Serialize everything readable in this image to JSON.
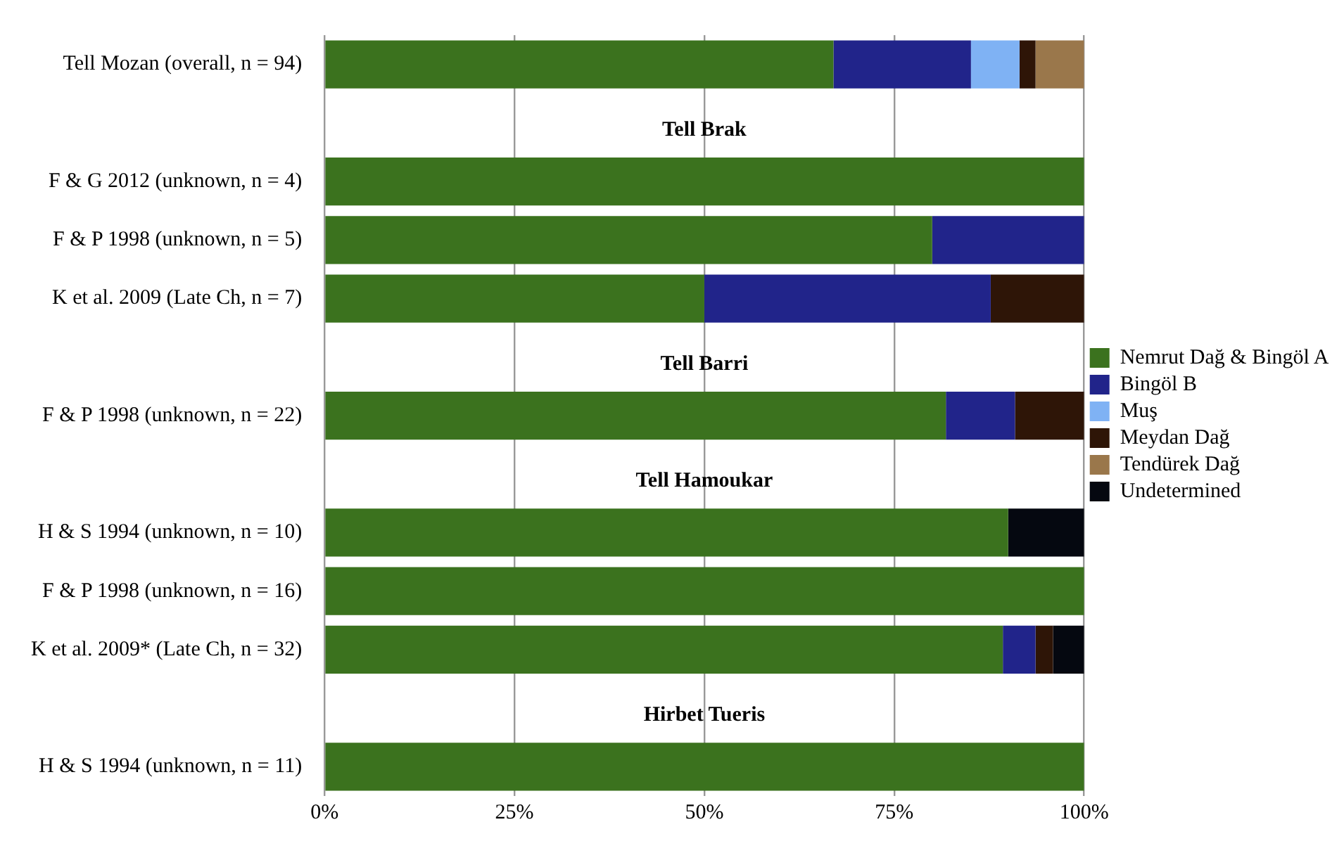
{
  "chart_data": {
    "type": "bar",
    "orientation": "horizontal",
    "stacked": true,
    "categories": [
      "Tell Mozan (overall, n = 94)",
      null,
      "F & G 2012 (unknown, n = 4)",
      "F & P 1998 (unknown, n = 5)",
      "K et al. 2009 (Late Ch, n = 7)",
      null,
      "F & P 1998 (unknown, n = 22)",
      null,
      "H & S 1994 (unknown, n = 10)",
      "F & P 1998 (unknown, n = 16)",
      "K et al. 2009* (Late Ch, n = 32)",
      null,
      "H & S 1994 (unknown, n = 11)"
    ],
    "annotations": [
      "Tell Brak",
      "Tell Barri",
      "Tell Hamoukar",
      "Hirbet Tueris"
    ],
    "series": [
      {
        "name": "Nemrut Dağ & Bingöl A",
        "color": "#3b721e",
        "values": [
          67,
          null,
          100,
          80,
          50,
          null,
          81.8,
          null,
          90,
          100,
          89.3,
          null,
          100
        ]
      },
      {
        "name": "Bingöl B",
        "color": "#21248a",
        "values": [
          18.1,
          null,
          0,
          20,
          37.7,
          null,
          9.1,
          null,
          0,
          0,
          4.3,
          null,
          0
        ]
      },
      {
        "name": "Muş",
        "color": "#7fb2f4",
        "values": [
          6.4,
          null,
          0,
          0,
          0,
          null,
          0,
          null,
          0,
          0,
          0,
          null,
          0
        ]
      },
      {
        "name": "Meydan Dağ",
        "color": "#2e1507",
        "values": [
          2.1,
          null,
          0,
          0,
          12.3,
          null,
          9.1,
          null,
          0,
          0,
          2.3,
          null,
          0
        ]
      },
      {
        "name": "Tendürek Dağ",
        "color": "#9a774b",
        "values": [
          6.4,
          null,
          0,
          0,
          0,
          null,
          0,
          null,
          0,
          0,
          0,
          null,
          0
        ]
      },
      {
        "name": "Undetermined",
        "color": "#050810",
        "values": [
          0,
          null,
          0,
          0,
          0,
          null,
          0,
          null,
          10,
          0,
          4.1,
          null,
          0
        ]
      }
    ],
    "xlim": [
      0,
      100
    ],
    "xticks": [
      {
        "value": 0,
        "label": "0%"
      },
      {
        "value": 25,
        "label": "25%"
      },
      {
        "value": 50,
        "label": "50%"
      },
      {
        "value": 75,
        "label": "75%"
      },
      {
        "value": 100,
        "label": "100%"
      }
    ],
    "grid": "x",
    "legend": "right"
  }
}
